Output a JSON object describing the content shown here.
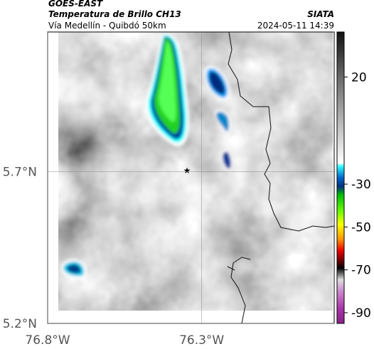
{
  "header": {
    "source": "GOES-EAST",
    "product": "Temperatura de Brillo CH13",
    "credit": "SIATA",
    "subtitle": "Vía Medellín - Quibdó 50km",
    "timestamp": "2024-05-11 14:39"
  },
  "map": {
    "xlim": [
      -76.8,
      -75.87
    ],
    "ylim": [
      5.2,
      6.16
    ],
    "xticks": [
      {
        "value": -76.8,
        "label": "76.8°W"
      },
      {
        "value": -76.3,
        "label": "76.3°W"
      }
    ],
    "yticks": [
      {
        "value": 5.7,
        "label": "5.7°N"
      },
      {
        "value": 5.2,
        "label": "5.2°N"
      }
    ]
  },
  "colorbar": {
    "lim": [
      -95,
      41
    ],
    "ticks": [
      20,
      -30,
      -50,
      -70,
      -90
    ]
  }
}
